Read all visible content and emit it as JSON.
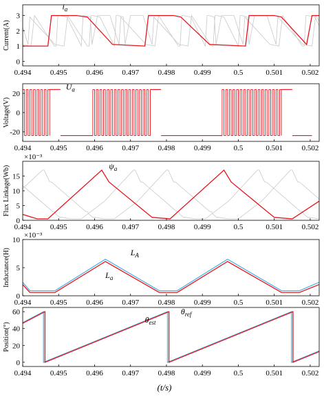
{
  "x_axis": {
    "range": [
      0.494,
      0.50225
    ],
    "ticks": [
      "0.494",
      "0.495",
      "0.496",
      "0.497",
      "0.498",
      "0.499",
      "0.5",
      "0.501",
      "0.502"
    ],
    "label": "(t/s)"
  },
  "colors": {
    "primary": "#e8141c",
    "reference": "#4fb3e6",
    "background_phases": "#c8c8c8"
  },
  "chart_data": [
    {
      "id": "current",
      "type": "line",
      "ylabel": "Current(A)",
      "ylim": [
        -0.3,
        3.7
      ],
      "yticks": [
        "0",
        "1",
        "2",
        "3"
      ],
      "exponent": "",
      "annotations": [
        {
          "text": "i_a",
          "x": 0.4951,
          "y": 3.4
        }
      ],
      "series": [
        {
          "role": "primary",
          "x": [
            0.494,
            0.4947,
            0.4948,
            0.4955,
            0.4958,
            0.4965,
            0.4974,
            0.4975,
            0.4982,
            0.4984,
            0.4992,
            0.5002,
            0.5003,
            0.501,
            0.5012,
            0.5019,
            0.50205,
            0.50225
          ],
          "y": [
            1.0,
            1.0,
            3.0,
            3.0,
            2.9,
            1.1,
            1.0,
            3.0,
            3.0,
            2.9,
            1.1,
            1.0,
            3.0,
            3.0,
            2.9,
            1.1,
            3.0,
            3.0
          ]
        },
        {
          "role": "background",
          "phase_offsets": [
            0.00093,
            0.00185
          ]
        }
      ]
    },
    {
      "id": "voltage",
      "type": "line",
      "ylabel": "Voltage(V)",
      "ylim": [
        -30,
        30
      ],
      "yticks": [
        "-20",
        "0",
        "20"
      ],
      "exponent": "",
      "annotations": [
        {
          "text": "U_a",
          "x": 0.4952,
          "y": 24
        }
      ],
      "series": [
        {
          "role": "primary",
          "levels": [
            -24,
            24
          ],
          "pwm_windows": [
            [
              0.494,
              0.49475
            ],
            [
              0.49595,
              0.49755
            ],
            [
              0.49955,
              0.5012
            ]
          ],
          "high_windows": [
            [
              0.49475,
              0.49505
            ],
            [
              0.49755,
              0.49785
            ],
            [
              0.5012,
              0.5015
            ]
          ],
          "low_windows": [
            [
              0.49505,
              0.49595
            ],
            [
              0.49785,
              0.49955
            ],
            [
              0.5015,
              0.50205
            ]
          ]
        }
      ]
    },
    {
      "id": "flux",
      "type": "line",
      "ylabel": "Flux Linkage(Wb)",
      "ylim": [
        0,
        20
      ],
      "yticks": [
        "0",
        "5",
        "10",
        "15"
      ],
      "exponent": "×10⁻³",
      "annotations": [
        {
          "text": "ψ_a",
          "x": 0.4964,
          "y": 17.5
        }
      ],
      "series": [
        {
          "role": "primary",
          "x": [
            0.494,
            0.4944,
            0.4947,
            0.4962,
            0.4964,
            0.4974,
            0.4976,
            0.4981,
            0.4996,
            0.4998,
            0.5008,
            0.501,
            0.5015,
            0.50225
          ],
          "y": [
            2.0,
            0.5,
            0.5,
            17.0,
            13.0,
            3.0,
            1.0,
            0.5,
            17.0,
            13.0,
            3.0,
            1.0,
            0.5,
            6.5
          ]
        },
        {
          "role": "background",
          "phase_offsets": [
            0.00093,
            0.00185
          ]
        }
      ]
    },
    {
      "id": "inductance",
      "type": "line",
      "ylabel": "Inductance(H)",
      "ylim": [
        0,
        10
      ],
      "yticks": [
        "0",
        "5",
        "10"
      ],
      "exponent": "×10⁻³",
      "annotations": [
        {
          "text": "L_A",
          "x": 0.497,
          "y": 7.2
        },
        {
          "text": "L_a",
          "x": 0.4963,
          "y": 3.2
        }
      ],
      "series": [
        {
          "name": "L_A",
          "role": "reference",
          "x": [
            0.494,
            0.4942,
            0.4949,
            0.4963,
            0.4978,
            0.4983,
            0.4997,
            0.5012,
            0.5017,
            0.50225
          ],
          "y": [
            2.4,
            0.9,
            0.9,
            6.5,
            0.9,
            0.9,
            6.5,
            0.9,
            0.9,
            2.4
          ]
        },
        {
          "name": "L_a",
          "role": "primary",
          "x": [
            0.494,
            0.4942,
            0.4949,
            0.4963,
            0.4978,
            0.4983,
            0.4997,
            0.5012,
            0.5017,
            0.50225
          ],
          "y": [
            2.0,
            0.6,
            0.6,
            6.1,
            0.6,
            0.6,
            6.1,
            0.6,
            0.6,
            2.0
          ]
        }
      ]
    },
    {
      "id": "position",
      "type": "line",
      "ylabel": "Position(°)",
      "ylim": [
        -5,
        65
      ],
      "yticks": [
        "0",
        "20",
        "40",
        "60"
      ],
      "exponent": "",
      "annotations": [
        {
          "text": "θ_ref",
          "x": 0.4984,
          "y": 57
        },
        {
          "text": "θ_est",
          "x": 0.4974,
          "y": 47
        }
      ],
      "series": [
        {
          "name": "θ_ref",
          "role": "reference",
          "x": [
            0.494,
            0.49458,
            0.49458,
            0.49803,
            0.49803,
            0.50148,
            0.50148,
            0.50225
          ],
          "y": [
            47.0,
            60.0,
            0.0,
            60.0,
            0.0,
            60.0,
            0.0,
            13.4
          ]
        },
        {
          "name": "θ_est",
          "role": "primary",
          "x": [
            0.494,
            0.49462,
            0.49462,
            0.49807,
            0.49807,
            0.50152,
            0.50152,
            0.50225
          ],
          "y": [
            46.3,
            60.0,
            0.0,
            60.0,
            0.0,
            60.0,
            0.0,
            12.7
          ]
        }
      ]
    }
  ]
}
